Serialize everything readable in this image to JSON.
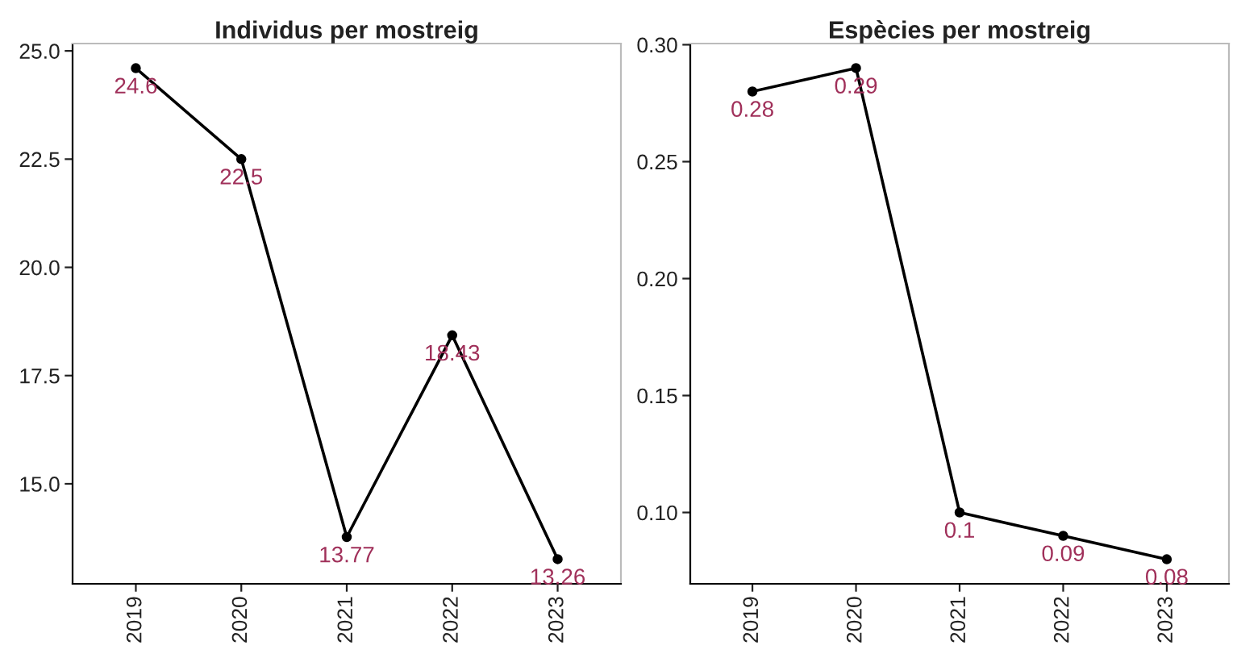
{
  "chart_data": [
    {
      "type": "line",
      "title": "Individus per mostreig",
      "categories": [
        "2019",
        "2020",
        "2021",
        "2022",
        "2023"
      ],
      "series": [
        {
          "color": "#000000",
          "values": [
            24.6,
            22.5,
            13.77,
            18.43,
            13.26
          ]
        }
      ],
      "ylim": [
        12.69,
        25.17
      ],
      "yticks": [
        {
          "value": 15,
          "label": "15.0"
        },
        17.5,
        {
          "value": 20,
          "label": "20.0"
        },
        22.5,
        {
          "value": 25,
          "label": "25.0"
        }
      ],
      "marker": "circle",
      "line_style": "solid",
      "grid": false,
      "legend": false,
      "data_labels": true
    },
    {
      "type": "line",
      "title": "Espècies per mostreig",
      "categories": [
        "2019",
        "2020",
        "2021",
        "2022",
        "2023"
      ],
      "series": [
        {
          "color": "#000000",
          "values": [
            0.28,
            0.29,
            0.1,
            0.09,
            0.08
          ]
        }
      ],
      "ylim": [
        0.0695,
        0.3005
      ],
      "yticks": [
        {
          "value": 0.1,
          "label": "0.10"
        },
        0.15,
        {
          "value": 0.2,
          "label": "0.20"
        },
        0.25,
        {
          "value": 0.3,
          "label": "0.30"
        }
      ],
      "marker": "circle",
      "line_style": "solid",
      "grid": false,
      "legend": false,
      "data_labels": true
    }
  ]
}
